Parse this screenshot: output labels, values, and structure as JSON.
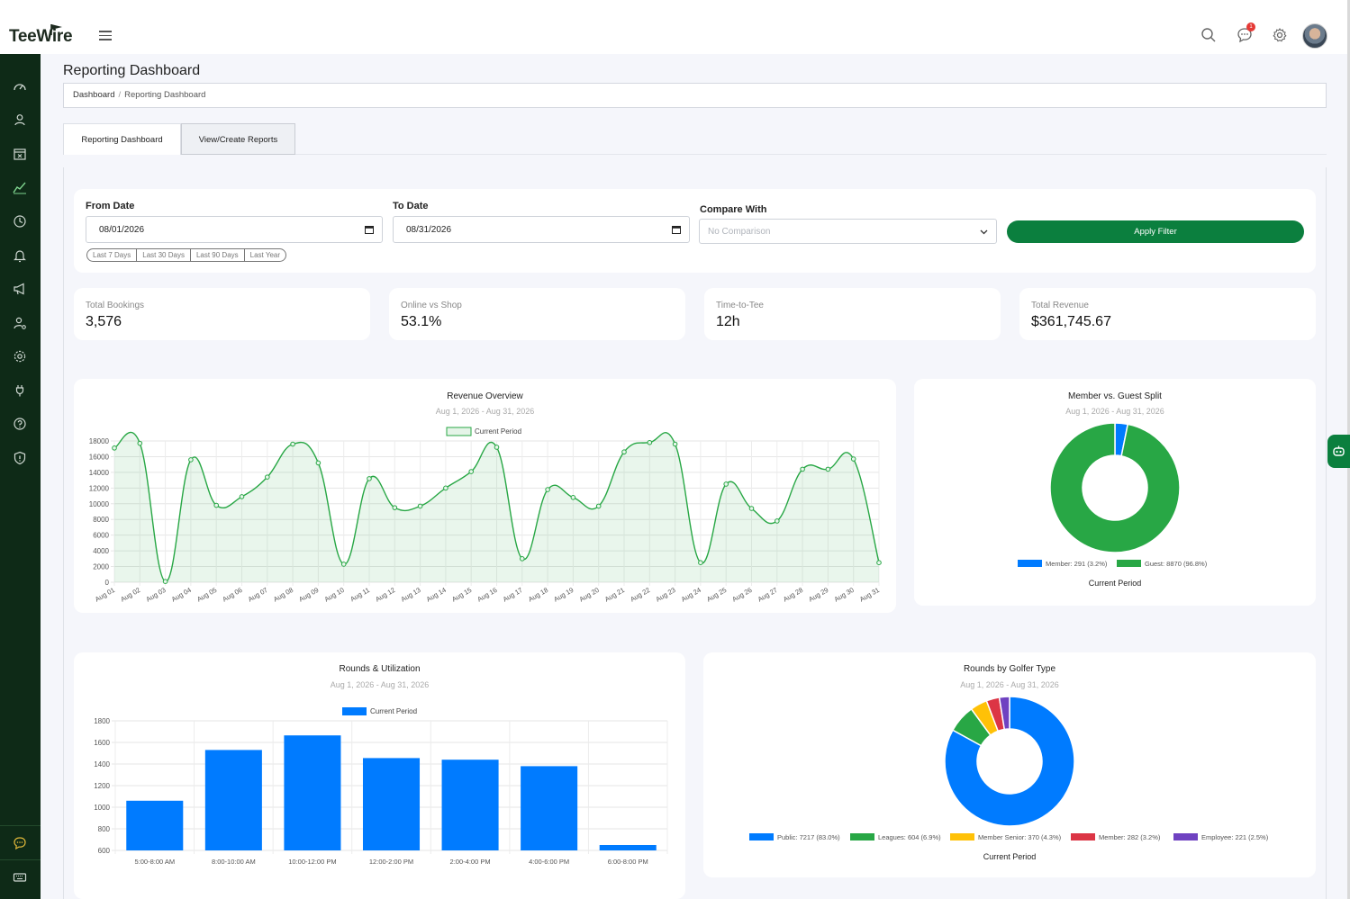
{
  "app": {
    "logo_main": "TeeWire",
    "notification_count": "1"
  },
  "page": {
    "title": "Reporting Dashboard",
    "breadcrumb": [
      "Dashboard",
      "Reporting Dashboard"
    ]
  },
  "tabs": [
    {
      "label": "Reporting Dashboard",
      "active": true
    },
    {
      "label": "View/Create Reports",
      "active": false
    }
  ],
  "filters": {
    "from_label": "From Date",
    "from_value": "08/01/2026",
    "to_label": "To Date",
    "to_value": "08/31/2026",
    "compare_label": "Compare With",
    "compare_placeholder": "No Comparison",
    "quick_ranges": [
      "Last 7 Days",
      "Last 30 Days",
      "Last 90 Days",
      "Last Year"
    ],
    "apply_label": "Apply Filter"
  },
  "stats": [
    {
      "label": "Total Bookings",
      "value": "3,576"
    },
    {
      "label": "Online vs Shop",
      "value": "53.1%"
    },
    {
      "label": "Time-to-Tee",
      "value": "12h"
    },
    {
      "label": "Total Revenue",
      "value": "$361,745.67"
    }
  ],
  "colors": {
    "brand_green": "#0b7f3e",
    "sidebar_bg": "#0e2a17",
    "line_green": "#28a745",
    "bar_blue": "#007bff"
  },
  "chart_data": [
    {
      "type": "area",
      "title": "Revenue Overview",
      "subtitle": "Aug 1, 2026 - Aug 31, 2026",
      "series": [
        {
          "name": "Current Period",
          "values": [
            17100,
            17700,
            100,
            15600,
            9800,
            10900,
            13400,
            17600,
            15200,
            2300,
            13200,
            9500,
            9700,
            12000,
            14100,
            17200,
            3000,
            11800,
            10800,
            9700,
            16600,
            17800,
            17600,
            2500,
            12500,
            9400,
            7800,
            14400,
            14400,
            15700,
            2500
          ]
        }
      ],
      "categories": [
        "Aug 01",
        "Aug 02",
        "Aug 03",
        "Aug 04",
        "Aug 05",
        "Aug 06",
        "Aug 07",
        "Aug 08",
        "Aug 09",
        "Aug 10",
        "Aug 11",
        "Aug 12",
        "Aug 13",
        "Aug 14",
        "Aug 15",
        "Aug 16",
        "Aug 17",
        "Aug 18",
        "Aug 19",
        "Aug 20",
        "Aug 21",
        "Aug 22",
        "Aug 23",
        "Aug 24",
        "Aug 25",
        "Aug 26",
        "Aug 27",
        "Aug 28",
        "Aug 29",
        "Aug 30",
        "Aug 31"
      ],
      "yticks": [
        0,
        2000,
        4000,
        6000,
        8000,
        10000,
        12000,
        14000,
        16000,
        18000
      ],
      "ylim": [
        0,
        18000
      ],
      "grid": true,
      "legend": "top"
    },
    {
      "type": "pie",
      "title": "Member vs. Guest Split",
      "subtitle": "Aug 1, 2026 - Aug 31, 2026",
      "slices": [
        {
          "label": "Member: 291 (3.2%)",
          "value": 291,
          "color": "#007bff"
        },
        {
          "label": "Guest: 8870 (96.8%)",
          "value": 8870,
          "color": "#28a745"
        }
      ],
      "caption": "Current Period",
      "legend": "bottom"
    },
    {
      "type": "bar",
      "title": "Rounds & Utilization",
      "subtitle": "Aug 1, 2026 - Aug 31, 2026",
      "categories": [
        "5:00-8:00 AM",
        "8:00-10:00 AM",
        "10:00-12:00 PM",
        "12:00-2:00 PM",
        "2:00-4:00 PM",
        "4:00-6:00 PM",
        "6:00-8:00 PM"
      ],
      "series": [
        {
          "name": "Current Period",
          "values": [
            1060,
            1530,
            1665,
            1455,
            1440,
            1380,
            650
          ]
        }
      ],
      "yticks": [
        600,
        800,
        1000,
        1200,
        1400,
        1600,
        1800
      ],
      "ylim": [
        600,
        1800
      ],
      "grid": true,
      "legend": "top"
    },
    {
      "type": "pie",
      "title": "Rounds by Golfer Type",
      "subtitle": "Aug 1, 2026 - Aug 31, 2026",
      "slices": [
        {
          "label": "Public: 7217 (83.0%)",
          "value": 7217,
          "color": "#007bff"
        },
        {
          "label": "Leagues: 604 (6.9%)",
          "value": 604,
          "color": "#28a745"
        },
        {
          "label": "Member Senior: 370 (4.3%)",
          "value": 370,
          "color": "#ffc107"
        },
        {
          "label": "Member: 282 (3.2%)",
          "value": 282,
          "color": "#dc3545"
        },
        {
          "label": "Employee: 221 (2.5%)",
          "value": 221,
          "color": "#6f42c1"
        }
      ],
      "caption": "Current Period",
      "legend": "bottom"
    }
  ]
}
